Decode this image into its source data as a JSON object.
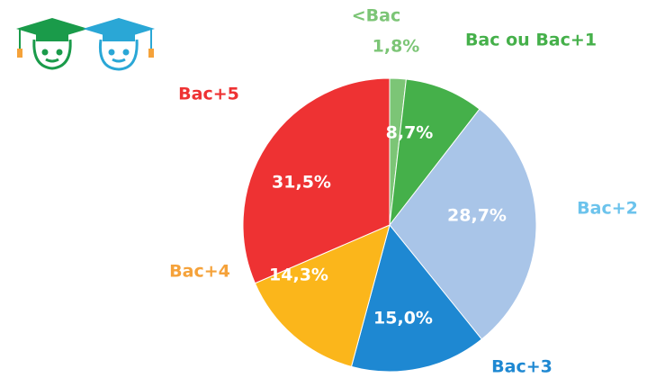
{
  "chart_data": {
    "type": "pie",
    "categories": [
      "<Bac",
      "Bac ou Bac+1",
      "Bac+2",
      "Bac+3",
      "Bac+4",
      "Bac+5"
    ],
    "values": [
      1.8,
      8.7,
      28.7,
      15.0,
      14.3,
      31.5
    ],
    "value_labels": [
      "1,8%",
      "8,7%",
      "28,7%",
      "15,0%",
      "14,3%",
      "31,5%"
    ],
    "colors": [
      "#7cc576",
      "#45b04a",
      "#a9c5e8",
      "#1e88d2",
      "#fbb61b",
      "#ee3233"
    ],
    "label_colors": [
      "#7cc576",
      "#45b04a",
      "#6cc3ec",
      "#1e88d2",
      "#f5a23a",
      "#ee3233"
    ]
  }
}
